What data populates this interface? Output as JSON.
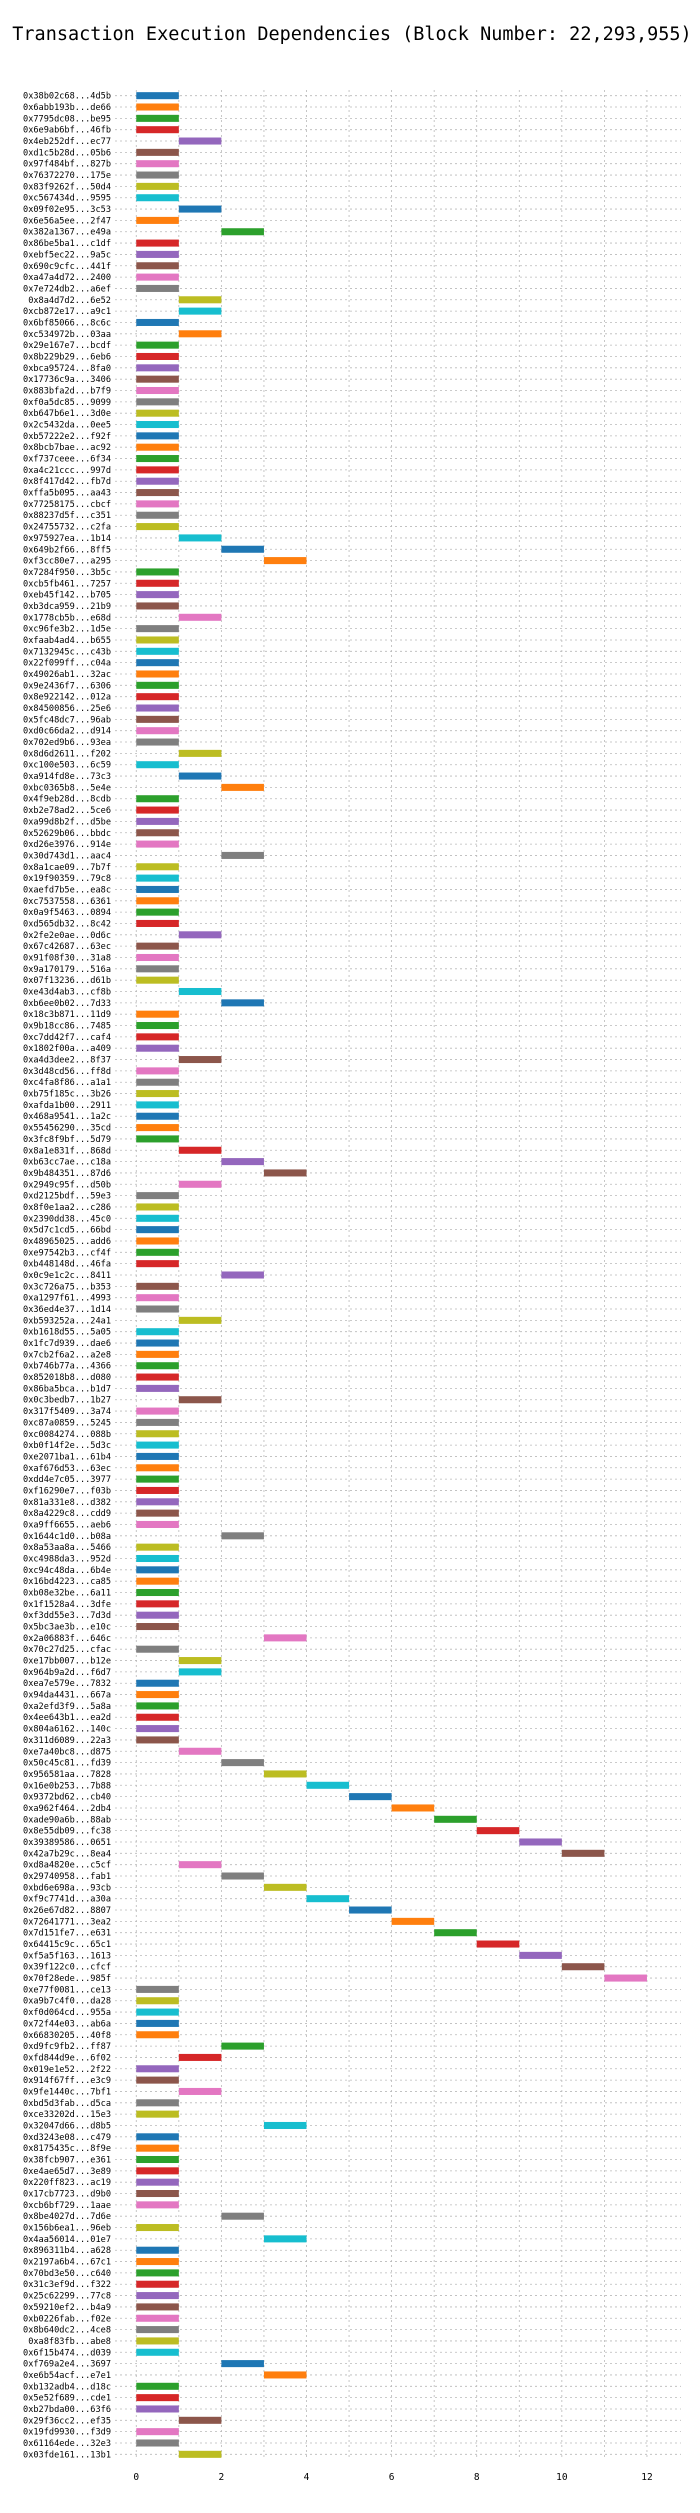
{
  "chart_data": {
    "type": "bar",
    "orientation": "horizontal-gantt",
    "title": "Transaction Execution Dependencies (Block Number: 22,293,955)",
    "xlabel": "",
    "ylabel": "",
    "xlim": [
      -0.5,
      12.8
    ],
    "xticks": [
      0,
      2,
      4,
      6,
      8,
      10,
      12
    ],
    "grid": true,
    "bar_width": 1,
    "palette": [
      "#1f77b4",
      "#ff7f0e",
      "#2ca02c",
      "#d62728",
      "#9467bd",
      "#8c564b",
      "#e377c2",
      "#7f7f7f",
      "#bcbd22",
      "#17becf"
    ],
    "transactions": [
      [
        "0x38b02c68...4d5b",
        0
      ],
      [
        "0x6abb193b...de66",
        0
      ],
      [
        "0x7795dc08...be95",
        0
      ],
      [
        "0x6e9ab6bf...46fb",
        0
      ],
      [
        "0x4eb252df...ec77",
        1
      ],
      [
        "0xd1c5b28d...05b6",
        0
      ],
      [
        "0x97f484bf...827b",
        0
      ],
      [
        "0x76372270...175e",
        0
      ],
      [
        "0x83f9262f...50d4",
        0
      ],
      [
        "0xc567434d...9595",
        0
      ],
      [
        "0x09f02e95...3c53",
        1
      ],
      [
        "0x6e56a5ee...2f47",
        0
      ],
      [
        "0x382a1367...e49a",
        2
      ],
      [
        "0x86be5ba1...c1df",
        0
      ],
      [
        "0xebf5ec22...9a5c",
        0
      ],
      [
        "0x690c9cfc...441f",
        0
      ],
      [
        "0xa47a4d72...2400",
        0
      ],
      [
        "0x7e724db2...a6ef",
        0
      ],
      [
        "0x8a4d7d2...6e52",
        1
      ],
      [
        "0xcb872e17...a9c1",
        1
      ],
      [
        "0x6bf85066...8c6c",
        0
      ],
      [
        "0xc534972b...03aa",
        1
      ],
      [
        "0x29e167e7...bcdf",
        0
      ],
      [
        "0x8b229b29...6eb6",
        0
      ],
      [
        "0xbca95724...8fa0",
        0
      ],
      [
        "0x17736c9a...3406",
        0
      ],
      [
        "0x883bfa2d...b7f9",
        0
      ],
      [
        "0xf0a5dc85...9099",
        0
      ],
      [
        "0xb647b6e1...3d0e",
        0
      ],
      [
        "0x2c5432da...0ee5",
        0
      ],
      [
        "0xb57222e2...f92f",
        0
      ],
      [
        "0x8bcb7bae...ac92",
        0
      ],
      [
        "0xf737ceee...6f34",
        0
      ],
      [
        "0xa4c21ccc...997d",
        0
      ],
      [
        "0x8f417d42...fb7d",
        0
      ],
      [
        "0xffa5b095...aa43",
        0
      ],
      [
        "0x77258175...cbcf",
        0
      ],
      [
        "0x88237d5f...c351",
        0
      ],
      [
        "0x24755732...c2fa",
        0
      ],
      [
        "0x975927ea...1b14",
        1
      ],
      [
        "0x649b2f66...8ff5",
        2
      ],
      [
        "0xf3cc80e7...a295",
        3
      ],
      [
        "0x7284f950...3b5c",
        0
      ],
      [
        "0xcb5fb461...7257",
        0
      ],
      [
        "0xeb45f142...b705",
        0
      ],
      [
        "0xb3dca959...21b9",
        0
      ],
      [
        "0x1778cb5b...e68d",
        1
      ],
      [
        "0xc96fe3b2...1d5e",
        0
      ],
      [
        "0xfaab4ad4...b655",
        0
      ],
      [
        "0x7132945c...c43b",
        0
      ],
      [
        "0x22f099ff...c04a",
        0
      ],
      [
        "0x49026ab1...32ac",
        0
      ],
      [
        "0x9e2436f7...6306",
        0
      ],
      [
        "0x8e922142...012a",
        0
      ],
      [
        "0x84500856...25e6",
        0
      ],
      [
        "0x5fc48dc7...96ab",
        0
      ],
      [
        "0xd0c66da2...d914",
        0
      ],
      [
        "0x702ed9b6...93ea",
        0
      ],
      [
        "0x8d6d2611...f202",
        1
      ],
      [
        "0xc100e503...6c59",
        0
      ],
      [
        "0xa914fd8e...73c3",
        1
      ],
      [
        "0xbc0365b8...5e4e",
        2
      ],
      [
        "0x4f9eb28d...8cdb",
        0
      ],
      [
        "0xb2e78ad2...5ce6",
        0
      ],
      [
        "0xa99d8b2f...d5be",
        0
      ],
      [
        "0x52629b06...bbdc",
        0
      ],
      [
        "0xd26e3976...914e",
        0
      ],
      [
        "0x30d743d1...aac4",
        2
      ],
      [
        "0x8a1cae09...7b7f",
        0
      ],
      [
        "0x19f90359...79c8",
        0
      ],
      [
        "0xaefd7b5e...ea8c",
        0
      ],
      [
        "0xc7537558...6361",
        0
      ],
      [
        "0x0a9f5463...0894",
        0
      ],
      [
        "0xd565db32...8c42",
        0
      ],
      [
        "0x2fe2e0ae...0d6c",
        1
      ],
      [
        "0x67c42687...63ec",
        0
      ],
      [
        "0x91f08f30...31a8",
        0
      ],
      [
        "0x9a170179...516a",
        0
      ],
      [
        "0x07f13236...d61b",
        0
      ],
      [
        "0xe43d4ab3...cf8b",
        1
      ],
      [
        "0xb6ee0b02...7d33",
        2
      ],
      [
        "0x18c3b871...11d9",
        0
      ],
      [
        "0x9b18cc86...7485",
        0
      ],
      [
        "0xc7dd42f7...caf4",
        0
      ],
      [
        "0x1802f00a...a409",
        0
      ],
      [
        "0xa4d3dee2...8f37",
        1
      ],
      [
        "0x3d48cd56...ff8d",
        0
      ],
      [
        "0xc4fa8f86...a1a1",
        0
      ],
      [
        "0xb75f185c...3b26",
        0
      ],
      [
        "0xafda1b00...2911",
        0
      ],
      [
        "0x468a9541...1a2c",
        0
      ],
      [
        "0x55456290...35cd",
        0
      ],
      [
        "0x3fc8f9bf...5d79",
        0
      ],
      [
        "0x8a1e831f...868d",
        1
      ],
      [
        "0xb63cc7ae...c18a",
        2
      ],
      [
        "0x9b484351...87d6",
        3
      ],
      [
        "0x2949c95f...d50b",
        1
      ],
      [
        "0xd2125bdf...59e3",
        0
      ],
      [
        "0x8f0e1aa2...c286",
        0
      ],
      [
        "0x2390dd38...45c0",
        0
      ],
      [
        "0x5d7c1cd5...66bd",
        0
      ],
      [
        "0x48965025...add6",
        0
      ],
      [
        "0xe97542b3...cf4f",
        0
      ],
      [
        "0xb448148d...46fa",
        0
      ],
      [
        "0x0c9e1c2c...8411",
        2
      ],
      [
        "0x3c726a75...b353",
        0
      ],
      [
        "0xa1297f61...4993",
        0
      ],
      [
        "0x36ed4e37...1d14",
        0
      ],
      [
        "0xb593252a...24a1",
        1
      ],
      [
        "0xb1618d55...5a05",
        0
      ],
      [
        "0x1fc7d939...dae6",
        0
      ],
      [
        "0x7cb2f6a2...a2e8",
        0
      ],
      [
        "0xb746b77a...4366",
        0
      ],
      [
        "0x852018b8...d080",
        0
      ],
      [
        "0x86ba5bca...b1d7",
        0
      ],
      [
        "0x0c3bedb7...1b27",
        1
      ],
      [
        "0x317f5409...3a74",
        0
      ],
      [
        "0xc87a0859...5245",
        0
      ],
      [
        "0xc0084274...088b",
        0
      ],
      [
        "0xb0f14f2e...5d3c",
        0
      ],
      [
        "0xe2071ba1...61b4",
        0
      ],
      [
        "0xaf676d53...63ec",
        0
      ],
      [
        "0xdd4e7c05...3977",
        0
      ],
      [
        "0xf16290e7...f03b",
        0
      ],
      [
        "0x81a331e8...d382",
        0
      ],
      [
        "0x8a4229c8...cdd9",
        0
      ],
      [
        "0xa9ff6655...aeb6",
        0
      ],
      [
        "0x1644c1d0...b08a",
        2
      ],
      [
        "0x8a53aa8a...5466",
        0
      ],
      [
        "0xc4988da3...952d",
        0
      ],
      [
        "0xc94c48da...6b4e",
        0
      ],
      [
        "0x16bd4223...ca85",
        0
      ],
      [
        "0xb08e32be...6a11",
        0
      ],
      [
        "0x1f1528a4...3dfe",
        0
      ],
      [
        "0xf3dd55e3...7d3d",
        0
      ],
      [
        "0x5bc3ae3b...e10c",
        0
      ],
      [
        "0x2a06883f...646c",
        3
      ],
      [
        "0x70c27d25...cfac",
        0
      ],
      [
        "0xe17bb007...b12e",
        1
      ],
      [
        "0x964b9a2d...f6d7",
        1
      ],
      [
        "0xea7e579e...7832",
        0
      ],
      [
        "0x94da4431...667a",
        0
      ],
      [
        "0xa2efd3f9...5a8a",
        0
      ],
      [
        "0x4ee643b1...ea2d",
        0
      ],
      [
        "0x804a6162...140c",
        0
      ],
      [
        "0x311d6089...22a3",
        0
      ],
      [
        "0xe7a40bc8...d875",
        1
      ],
      [
        "0x50c45c81...fd39",
        2
      ],
      [
        "0x956581aa...7828",
        3
      ],
      [
        "0x16e0b253...7b88",
        4
      ],
      [
        "0x9372bd62...cb40",
        5
      ],
      [
        "0xa962f464...2db4",
        6
      ],
      [
        "0xade90a6b...88ab",
        7
      ],
      [
        "0x8e55db09...fc38",
        8
      ],
      [
        "0x39389586...0651",
        9
      ],
      [
        "0x42a7b29c...8ea4",
        10
      ],
      [
        "0xd8a4820e...c5cf",
        1
      ],
      [
        "0x29740958...fab1",
        2
      ],
      [
        "0xbd6e698a...93cb",
        3
      ],
      [
        "0xf9c7741d...a30a",
        4
      ],
      [
        "0x26e67d82...8807",
        5
      ],
      [
        "0x72641771...3ea2",
        6
      ],
      [
        "0x7d151fe7...e631",
        7
      ],
      [
        "0x64415c9c...65c1",
        8
      ],
      [
        "0xf5a5f163...1613",
        9
      ],
      [
        "0x39f122c0...cfcf",
        10
      ],
      [
        "0x70f28ede...985f",
        11
      ],
      [
        "0xe77f0081...ce13",
        0
      ],
      [
        "0xa9b7c4f0...da28",
        0
      ],
      [
        "0xf0d064cd...955a",
        0
      ],
      [
        "0x72f44e03...ab6a",
        0
      ],
      [
        "0x66830205...40f8",
        0
      ],
      [
        "0xd9fc9fb2...ff87",
        2
      ],
      [
        "0xfd844d9e...6f02",
        1
      ],
      [
        "0x019e1e52...2f22",
        0
      ],
      [
        "0x914f67ff...e3c9",
        0
      ],
      [
        "0x9fe1440c...7bf1",
        1
      ],
      [
        "0xbd5d3fab...d5ca",
        0
      ],
      [
        "0xce33202d...15e3",
        0
      ],
      [
        "0x32047d66...d8b5",
        3
      ],
      [
        "0xd3243e08...c479",
        0
      ],
      [
        "0x8175435c...8f9e",
        0
      ],
      [
        "0x38fcb907...e361",
        0
      ],
      [
        "0xe4ae65d7...3e89",
        0
      ],
      [
        "0x220ff823...ac19",
        0
      ],
      [
        "0x17cb7723...d9b0",
        0
      ],
      [
        "0xcb6bf729...1aae",
        0
      ],
      [
        "0x8be4027d...7d6e",
        2
      ],
      [
        "0x156b6ea1...96eb",
        0
      ],
      [
        "0x4aa56014...01e7",
        3
      ],
      [
        "0x896311b4...a628",
        0
      ],
      [
        "0x2197a6b4...67c1",
        0
      ],
      [
        "0x70bd3e50...c640",
        0
      ],
      [
        "0x31c3ef9d...f322",
        0
      ],
      [
        "0x25c62299...77c8",
        0
      ],
      [
        "0x59210ef2...b4a9",
        0
      ],
      [
        "0xb0226fab...f02e",
        0
      ],
      [
        "0x8b640dc2...4ce8",
        0
      ],
      [
        "0xa8f83fb...abe8",
        0
      ],
      [
        "0x6f15b474...d039",
        0
      ],
      [
        "0xf769a2e4...3697",
        2
      ],
      [
        "0xe6b54acf...e7e1",
        3
      ],
      [
        "0xb132adb4...d18c",
        0
      ],
      [
        "0x5e52f689...cde1",
        0
      ],
      [
        "0xb27bda00...63f6",
        0
      ],
      [
        "0x29f36cc2...ef35",
        1
      ],
      [
        "0x19fd9930...f3d9",
        0
      ],
      [
        "0x61164ede...32e3",
        0
      ],
      [
        "0x03fde161...13b1",
        1
      ]
    ]
  }
}
